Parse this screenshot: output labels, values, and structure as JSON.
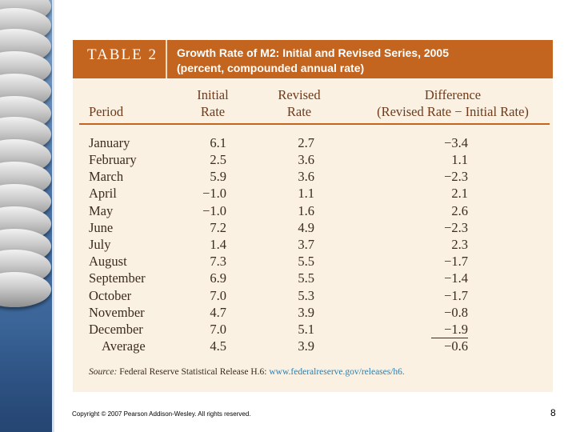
{
  "table": {
    "label": "TABLE 2",
    "caption_line1": "Growth Rate of M2: Initial and Revised Series, 2005",
    "caption_line2": "(percent, compounded annual rate)",
    "headers": {
      "period": "Period",
      "initial_top": "Initial",
      "initial_bottom": "Rate",
      "revised_top": "Revised",
      "revised_bottom": "Rate",
      "difference_top": "Difference",
      "difference_bottom": "(Revised Rate − Initial Rate)"
    },
    "rows": [
      {
        "period": "January",
        "initial": "6.1",
        "revised": "2.7",
        "difference": "−3.4"
      },
      {
        "period": "February",
        "initial": "2.5",
        "revised": "3.6",
        "difference": "1.1"
      },
      {
        "period": "March",
        "initial": "5.9",
        "revised": "3.6",
        "difference": "−2.3"
      },
      {
        "period": "April",
        "initial": "−1.0",
        "revised": "1.1",
        "difference": "2.1"
      },
      {
        "period": "May",
        "initial": "−1.0",
        "revised": "1.6",
        "difference": "2.6"
      },
      {
        "period": "June",
        "initial": "7.2",
        "revised": "4.9",
        "difference": "−2.3"
      },
      {
        "period": "July",
        "initial": "1.4",
        "revised": "3.7",
        "difference": "2.3"
      },
      {
        "period": "August",
        "initial": "7.3",
        "revised": "5.5",
        "difference": "−1.7"
      },
      {
        "period": "September",
        "initial": "6.9",
        "revised": "5.5",
        "difference": "−1.4"
      },
      {
        "period": "October",
        "initial": "7.0",
        "revised": "5.3",
        "difference": "−1.7"
      },
      {
        "period": "November",
        "initial": "4.7",
        "revised": "3.9",
        "difference": "−0.8"
      },
      {
        "period": "December",
        "initial": "7.0",
        "revised": "5.1",
        "difference": "−1.9"
      }
    ],
    "average": {
      "period": "Average",
      "initial": "4.5",
      "revised": "3.9",
      "difference": "−0.6"
    },
    "source_label": "Source:",
    "source_text": "Federal Reserve Statistical Release H.6:",
    "source_link": "www.federalreserve.gov/releases/h6."
  },
  "footer": {
    "copyright": "Copyright © 2007 Pearson Addison-Wesley. All rights reserved.",
    "page_number": "8"
  }
}
